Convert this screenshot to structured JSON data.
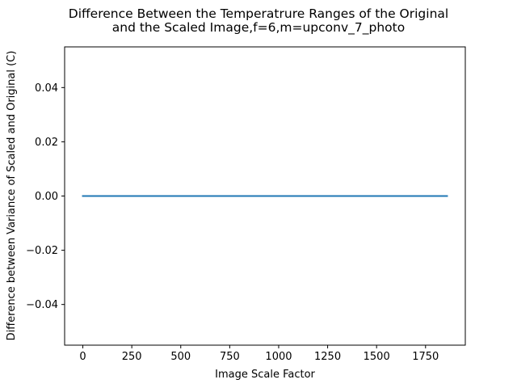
{
  "chart_data": {
    "type": "line",
    "title": {
      "line1": "Difference Between the Temperatrure Ranges of the Original",
      "line2": "and the Scaled Image,f=6,m=upconv_7_photo"
    },
    "xlabel": "Image Scale Factor",
    "ylabel": "Difference between Variance of Scaled and Original (C)",
    "xlim": [
      -93,
      1953
    ],
    "ylim": [
      -0.055,
      0.055
    ],
    "x_ticks": [
      0,
      250,
      500,
      750,
      1000,
      1250,
      1500,
      1750
    ],
    "x_tick_labels": [
      "0",
      "250",
      "500",
      "750",
      "1000",
      "1250",
      "1500",
      "1750"
    ],
    "y_ticks": [
      -0.04,
      -0.02,
      0.0,
      0.02,
      0.04
    ],
    "y_tick_labels": [
      "−0.04",
      "−0.02",
      "0.00",
      "0.02",
      "0.04"
    ],
    "grid": false,
    "series": [
      {
        "color": "#1f77b4",
        "x": [
          0,
          1860
        ],
        "y": [
          0.0,
          0.0
        ]
      }
    ]
  }
}
